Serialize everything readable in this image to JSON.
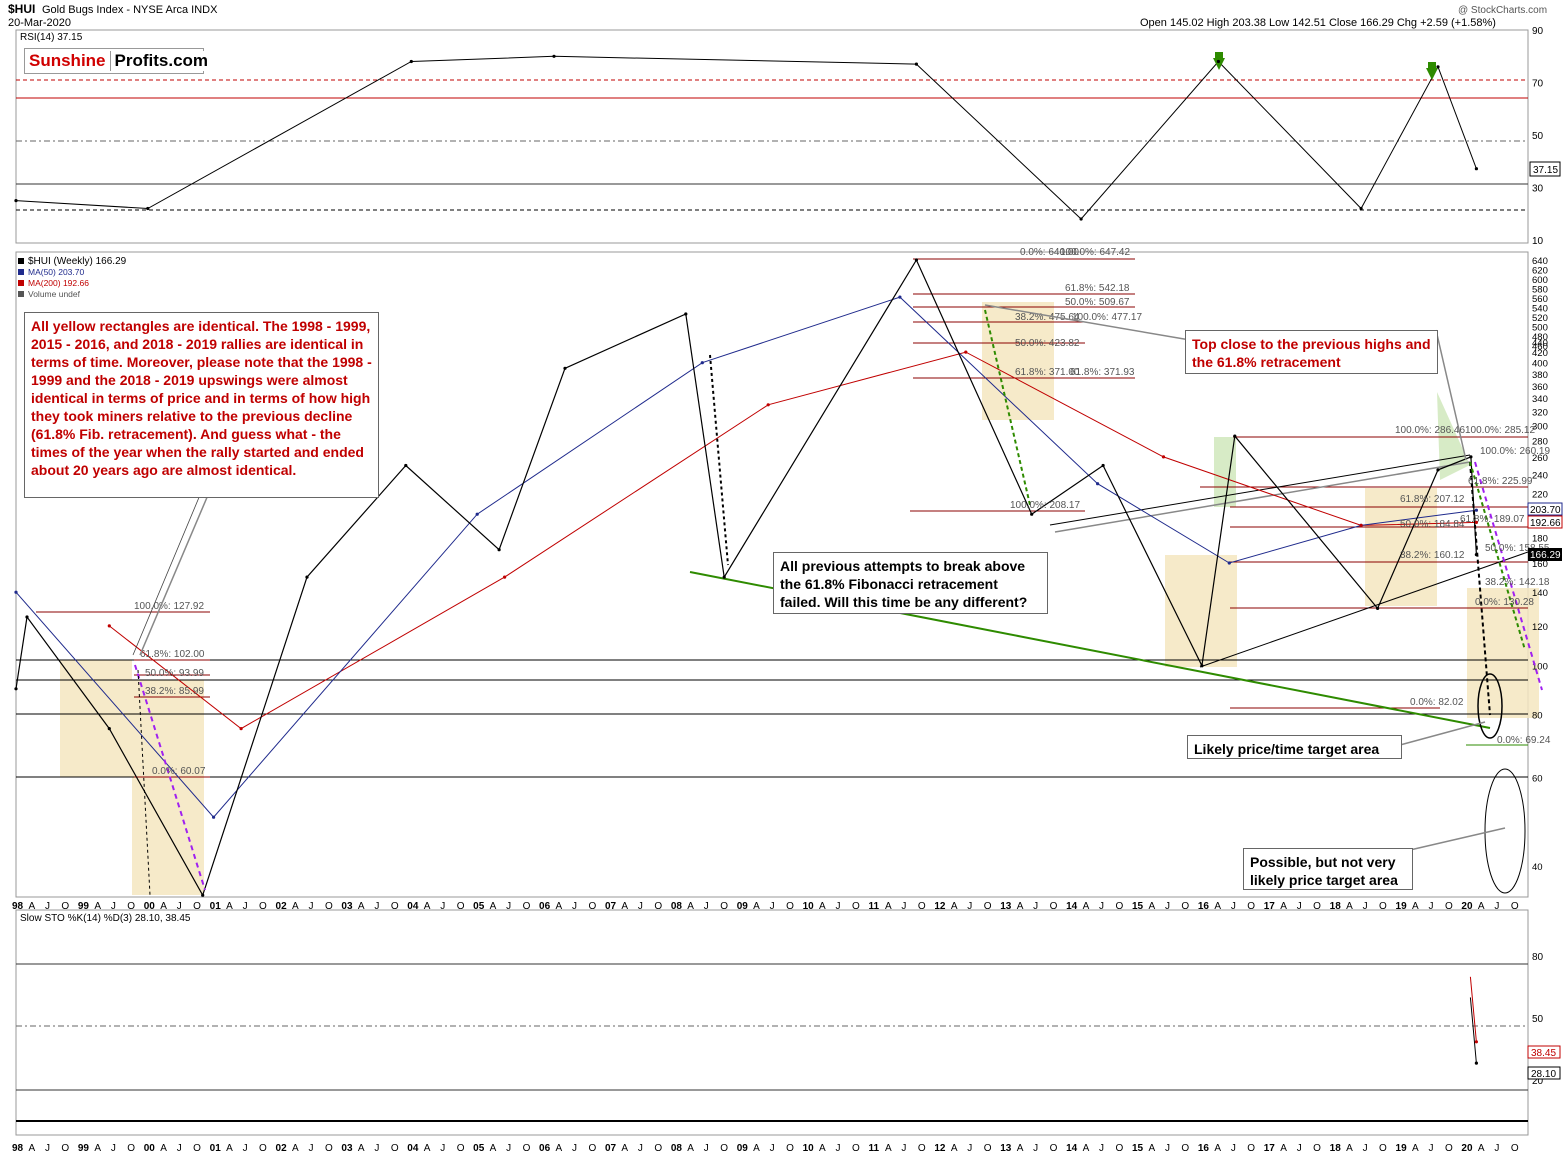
{
  "header": {
    "symbol": "$HUI",
    "name": "Gold Bugs Index - NYSE Arca INDX",
    "date": "20-Mar-2020",
    "ohlc": "Open 145.02  High 203.38  Low 142.51  Close 166.29  Chg +2.59 (+1.58%)",
    "credit": "@ StockCharts.com"
  },
  "logo": {
    "part1": "Sunshine",
    "part2": "Profits.com"
  },
  "rsi_panel": {
    "label": "RSI(14) 37.15",
    "current": "37.15",
    "axis_ticks": [
      "90",
      "70",
      "50",
      "30",
      "10"
    ]
  },
  "price_panel": {
    "legend": [
      "$HUI (Weekly) 166.29",
      "MA(50) 203.70",
      "MA(200) 192.66",
      "Volume undef"
    ],
    "axis_ticks": [
      "640",
      "620",
      "600",
      "580",
      "560",
      "540",
      "520",
      "500",
      "480",
      "460",
      "440",
      "420",
      "400",
      "380",
      "360",
      "340",
      "320",
      "300",
      "280",
      "260",
      "240",
      "220",
      "200",
      "180",
      "160",
      "140",
      "120",
      "100",
      "80",
      "60",
      "40"
    ],
    "price_tags": [
      "203.70",
      "192.66",
      "166.29"
    ]
  },
  "sto_panel": {
    "label": "Slow STO %K(14) %D(3) 28.10, 38.45",
    "axis_ticks": [
      "80",
      "50",
      "20"
    ],
    "tags": [
      "38.45",
      "28.10"
    ]
  },
  "x_axis": {
    "labels": [
      "98",
      "A",
      "J",
      "O",
      "99",
      "A",
      "J",
      "O",
      "00",
      "A",
      "J",
      "O",
      "01",
      "A",
      "J",
      "O",
      "02",
      "A",
      "J",
      "O",
      "03",
      "A",
      "J",
      "O",
      "04",
      "A",
      "J",
      "O",
      "05",
      "A",
      "J",
      "O",
      "06",
      "A",
      "J",
      "O",
      "07",
      "A",
      "J",
      "O",
      "08",
      "A",
      "J",
      "O",
      "09",
      "A",
      "J",
      "O",
      "10",
      "A",
      "J",
      "O",
      "11",
      "A",
      "J",
      "O",
      "12",
      "A",
      "J",
      "O",
      "13",
      "A",
      "J",
      "O",
      "14",
      "A",
      "J",
      "O",
      "15",
      "A",
      "J",
      "O",
      "16",
      "A",
      "J",
      "O",
      "17",
      "A",
      "J",
      "O",
      "18",
      "A",
      "J",
      "O",
      "19",
      "A",
      "J",
      "O",
      "20",
      "A",
      "J",
      "O"
    ]
  },
  "fib_labels": {
    "a1": "100.0%: 127.92",
    "a2": "61.8%: 102.00",
    "a3": "50.0%: 93.99",
    "a4": "38.2%: 85.99",
    "a5": "0.0%: 60.07",
    "b1": "0.0%: 640.00",
    "b1r": "100.0%: 647.42",
    "b2": "61.8%: 542.18",
    "b3": "50.0%: 509.67",
    "b4": "38.2%: 475.64",
    "b4r": "100.0%: 477.17",
    "b5": "50.0%: 423.82",
    "b6": "61.8%: 371.00",
    "b6r": "61.8%: 371.93",
    "b7": "100.0%: 208.17",
    "c1": "100.0%: 286.46",
    "c1r": "100.0%: 285.12",
    "c2": "100.0%: 260.19",
    "c3": "61.8%: 225.99",
    "c4": "61.8%: 207.12",
    "c5": "50.0%: 184.84",
    "c5r": "61.8%: 189.07",
    "c6": "38.2%: 160.12",
    "c7": "50.0%: 158.55",
    "c8": "38.2%: 142.18",
    "c9": "0.0%: 130.28",
    "c10": "0.0%: 82.02",
    "c11": "0.0%: 69.24"
  },
  "annotations": {
    "yellow_note": "All yellow rectangles are identical. The 1998 - 1999, 2015 - 2016, and 2018 - 2019 rallies are identical in terms of time. Moreover, please note that the 1998 - 1999 and the 2018 - 2019 upswings were almost identical in terms of price and in terms of how high they took miners relative to the previous decline (61.8% Fib. retracement). And guess what - the times of the year when the rally started and ended about 20 years ago are almost identical.",
    "top_close": "Top close to the previous highs and the 61.8% retracement",
    "fib_note": "All previous attempts to break above the 61.8% Fibonacci retracement failed. Will this time be any different?",
    "likely": "Likely price/time target area",
    "possible": "Possible, but not very likely price target area"
  },
  "colors": {
    "price_up": "#000000",
    "price_down": "#c00000",
    "ma50": "#1f2a8c",
    "ma200": "#c00000",
    "support": "#2e8b00",
    "fib_line": "#8b0000",
    "rect_fill": "#f5e6c0",
    "rsi_line": "#000000",
    "sto_k": "#000000",
    "sto_d": "#c00000",
    "arrow_green": "#2e8b00",
    "purple_dash": "#a020f0"
  },
  "chart_data": [
    {
      "type": "line",
      "title": "RSI(14)",
      "ylim": [
        10,
        90
      ],
      "y_scale": "linear",
      "grid": true,
      "series": [
        {
          "name": "RSI(14)",
          "x": [
            "1998-01",
            "2000-01",
            "2004-01",
            "2006-03",
            "2011-09",
            "2014-03",
            "2016-04",
            "2018-06",
            "2019-08",
            "2020-03"
          ],
          "values": [
            25,
            22,
            78,
            80,
            77,
            18,
            78,
            22,
            76,
            37.15
          ]
        }
      ],
      "reference_levels": [
        70,
        50,
        30
      ]
    },
    {
      "type": "line",
      "title": "$HUI (Weekly)",
      "y_scale": "log",
      "ylim": [
        30,
        640
      ],
      "series": [
        {
          "name": "$HUI (Weekly)",
          "x": [
            "1998-01",
            "1998-03",
            "1999-06",
            "2000-11",
            "2002-06",
            "2003-12",
            "2005-05",
            "2006-05",
            "2008-03",
            "2008-10",
            "2011-09",
            "2013-06",
            "2014-07",
            "2016-01",
            "2016-07",
            "2018-09",
            "2019-08",
            "2020-02",
            "2020-03"
          ],
          "values": [
            90,
            125,
            75,
            35,
            150,
            250,
            170,
            390,
            500,
            150,
            640,
            200,
            250,
            100,
            286,
            130,
            245,
            260,
            166.29
          ]
        },
        {
          "name": "MA(50)",
          "x": [
            "1998-01",
            "2001-01",
            "2005-01",
            "2008-06",
            "2011-06",
            "2014-06",
            "2016-06",
            "2018-06",
            "2020-03"
          ],
          "values": [
            140,
            50,
            200,
            400,
            540,
            230,
            160,
            190,
            203.7
          ]
        },
        {
          "name": "MA(200)",
          "x": [
            "1999-06",
            "2001-06",
            "2005-06",
            "2009-06",
            "2012-06",
            "2015-06",
            "2018-06",
            "2020-03"
          ],
          "values": [
            120,
            75,
            150,
            330,
            420,
            260,
            190,
            192.66
          ]
        }
      ]
    },
    {
      "type": "line",
      "title": "Slow STO %K(14) %D(3)",
      "ylim": [
        0,
        100
      ],
      "grid": true,
      "series": [
        {
          "name": "%K(14)",
          "x": [
            "2020-03"
          ],
          "values": [
            28.1
          ]
        },
        {
          "name": "%D(3)",
          "x": [
            "2020-03"
          ],
          "values": [
            38.45
          ]
        }
      ],
      "reference_levels": [
        80,
        50,
        20
      ]
    }
  ]
}
